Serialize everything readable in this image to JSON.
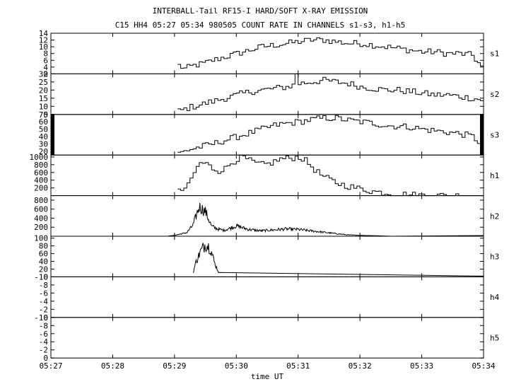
{
  "chart_data": {
    "type": "line",
    "title": "INTERBALL-Tail RF15-I HARD/SOFT X-RAY EMISSION",
    "subtitle": "C15 HH4 05:27 05:34 980505  COUNT RATE IN CHANNELS s1-s3, h1-h5",
    "xlabel": "time UT",
    "x_ticks": [
      "05:27",
      "05:28",
      "05:29",
      "05:30",
      "05:31",
      "05:32",
      "05:33",
      "05:34"
    ],
    "xlim": [
      0,
      7
    ],
    "x_unit": "minutes after 05:27 UT",
    "grid": false,
    "series": [
      {
        "name": "s1",
        "ylim": [
          2,
          14
        ],
        "y_ticks": [
          2,
          4,
          6,
          8,
          10,
          12,
          14
        ],
        "step": 0.05,
        "x": [
          2.05,
          2.15,
          2.3,
          2.45,
          2.6,
          2.8,
          3.0,
          3.2,
          3.4,
          3.6,
          3.8,
          4.0,
          4.2,
          4.4,
          4.6,
          4.8,
          5.0,
          5.2,
          5.4,
          5.6,
          5.8,
          6.0,
          6.2,
          6.4,
          6.6,
          6.8,
          6.95
        ],
        "y": [
          4.5,
          3.5,
          4.5,
          5,
          6,
          7,
          8,
          9,
          10,
          10.5,
          11,
          11.5,
          12,
          12,
          11.5,
          11,
          11,
          10.5,
          10,
          9.5,
          9,
          8.5,
          8.5,
          8,
          8,
          7.5,
          4
        ]
      },
      {
        "name": "s2",
        "ylim": [
          5,
          30
        ],
        "y_ticks": [
          5,
          10,
          15,
          20,
          25,
          30
        ],
        "step": 0.05,
        "x": [
          2.05,
          2.2,
          2.4,
          2.6,
          2.8,
          3.0,
          3.2,
          3.4,
          3.6,
          3.8,
          4.0,
          4.2,
          4.4,
          4.6,
          4.8,
          5.0,
          5.2,
          5.4,
          5.6,
          5.8,
          6.0,
          6.2,
          6.4,
          6.6,
          6.8,
          6.95
        ],
        "y": [
          7,
          9,
          11,
          13,
          15,
          17,
          19,
          20,
          21,
          22,
          24,
          25,
          26,
          25,
          24,
          22,
          21,
          20,
          20,
          19,
          18,
          17,
          17,
          16,
          15,
          14
        ],
        "spikes": [
          [
            3.95,
            30
          ]
        ]
      },
      {
        "name": "s3",
        "ylim": [
          15,
          70
        ],
        "y_ticks": [
          20,
          30,
          40,
          50,
          60,
          70
        ],
        "step": 0.05,
        "x": [
          2.05,
          2.2,
          2.4,
          2.6,
          2.8,
          3.0,
          3.2,
          3.4,
          3.6,
          3.8,
          4.0,
          4.2,
          4.4,
          4.6,
          4.8,
          5.0,
          5.2,
          5.4,
          5.6,
          5.8,
          6.0,
          6.2,
          6.4,
          6.6,
          6.8,
          6.95
        ],
        "y": [
          17,
          22,
          26,
          30,
          35,
          40,
          45,
          50,
          55,
          58,
          60,
          63,
          65,
          65,
          62,
          60,
          58,
          55,
          54,
          53,
          50,
          48,
          46,
          44,
          40,
          30
        ]
      },
      {
        "name": "h1",
        "ylim": [
          0,
          1050
        ],
        "y_ticks": [
          200,
          400,
          600,
          800,
          1000
        ],
        "step": 0.05,
        "x": [
          2.05,
          2.2,
          2.3,
          2.4,
          2.5,
          2.6,
          2.7,
          2.8,
          2.9,
          3.0,
          3.1,
          3.2,
          3.3,
          3.4,
          3.5,
          3.6,
          3.7,
          3.8,
          3.9,
          4.0,
          4.1,
          4.2,
          4.3,
          4.4,
          4.6,
          4.8,
          5.0,
          5.2,
          5.4,
          5.6,
          5.8,
          6.0,
          6.2,
          6.4,
          6.6,
          6.8,
          6.95
        ],
        "y": [
          100,
          250,
          600,
          850,
          820,
          700,
          650,
          700,
          850,
          950,
          980,
          900,
          830,
          800,
          820,
          880,
          950,
          960,
          980,
          1000,
          900,
          750,
          600,
          480,
          330,
          240,
          170,
          110,
          70,
          40,
          20,
          10,
          5,
          3,
          2,
          1,
          0
        ]
      },
      {
        "name": "h2",
        "ylim": [
          0,
          900
        ],
        "y_ticks": [
          200,
          400,
          600,
          800
        ],
        "step": 0.01,
        "noise": true,
        "x": [
          1.9,
          2.0,
          2.2,
          2.3,
          2.4,
          2.5,
          2.6,
          2.7,
          2.8,
          3.0,
          3.2,
          3.4,
          3.6,
          3.8,
          4.0,
          4.2,
          4.4,
          4.6,
          4.8,
          5.0,
          5.3,
          5.5
        ],
        "y": [
          5,
          20,
          80,
          250,
          650,
          550,
          220,
          160,
          130,
          230,
          150,
          120,
          140,
          160,
          150,
          120,
          90,
          60,
          30,
          20,
          10,
          0
        ]
      },
      {
        "name": "h3",
        "ylim": [
          0,
          105
        ],
        "y_ticks": [
          0,
          20,
          40,
          60,
          80,
          100
        ],
        "step": 0.01,
        "noise": true,
        "x": [
          2.3,
          2.35,
          2.42,
          2.5,
          2.58,
          2.65,
          2.72
        ],
        "y": [
          10,
          40,
          65,
          85,
          75,
          35,
          10
        ]
      },
      {
        "name": "h4",
        "ylim": [
          0,
          10
        ],
        "y_ticks": [
          0,
          -2,
          -4,
          -6,
          -8,
          -10
        ],
        "x": [],
        "y": []
      },
      {
        "name": "h5",
        "ylim": [
          0,
          10
        ],
        "y_ticks": [
          0,
          -2,
          -4,
          -6,
          -8,
          -10
        ],
        "x": [],
        "y": []
      }
    ]
  }
}
